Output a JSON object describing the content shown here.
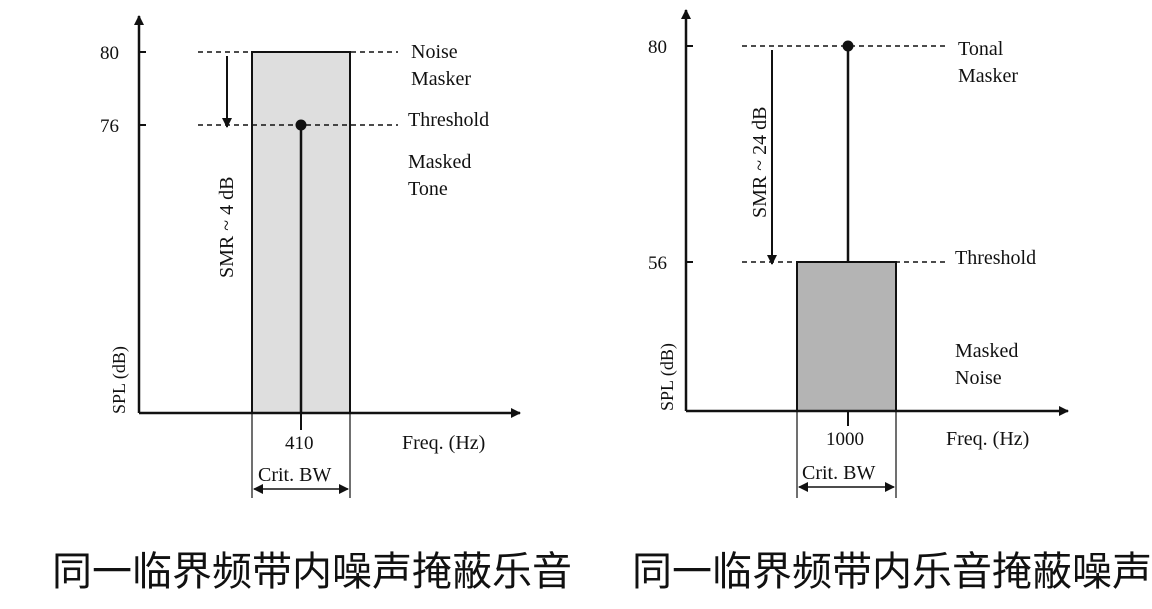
{
  "left_figure": {
    "y_axis_label": "SPL (dB)",
    "x_axis_label": "Freq. (Hz)",
    "tick_80": "80",
    "tick_76": "76",
    "noise_masker_line1": "Noise",
    "noise_masker_line2": "Masker",
    "threshold": "Threshold",
    "masked_tone_line1": "Masked",
    "masked_tone_line2": "Tone",
    "smr": "SMR ~ 4 dB",
    "freq_value": "410",
    "crit_bw": "Crit. BW",
    "caption": "同一临界频带内噪声掩蔽乐音"
  },
  "right_figure": {
    "y_axis_label": "SPL (dB)",
    "x_axis_label": "Freq. (Hz)",
    "tick_80": "80",
    "tick_56": "56",
    "tonal_masker_line1": "Tonal",
    "tonal_masker_line2": "Masker",
    "threshold": "Threshold",
    "masked_noise_line1": "Masked",
    "masked_noise_line2": "Noise",
    "smr": "SMR ~ 24 dB",
    "freq_value": "1000",
    "crit_bw": "Crit. BW",
    "caption": "同一临界频带内乐音掩蔽噪声"
  },
  "colors": {
    "ink": "#111111",
    "band_fill_left": "#dedede",
    "band_fill_right": "#b4b4b4"
  }
}
